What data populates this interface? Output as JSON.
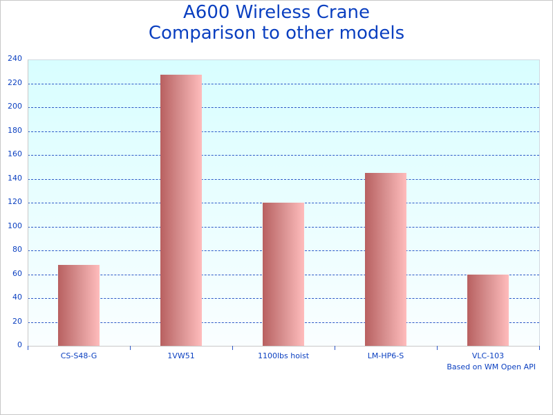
{
  "chart_data": {
    "type": "bar",
    "title": "A600 Wireless Crane\nComparison to other models",
    "title_lines": [
      "A600 Wireless Crane",
      "Comparison to other models"
    ],
    "categories": [
      "CS-S48-G",
      "1VW51",
      "1100lbs hoist",
      "LM-HP6-S",
      "VLC-103"
    ],
    "values": [
      68,
      227,
      120,
      145,
      60
    ],
    "xlabel": "",
    "ylabel": "",
    "ylim": [
      0,
      240
    ],
    "yticks": [
      0,
      20,
      40,
      60,
      80,
      100,
      120,
      140,
      160,
      180,
      200,
      220,
      240
    ],
    "grid": true,
    "legend": null,
    "annotation": "Based on WM Open API"
  },
  "colors": {
    "text": "#0a3fc0",
    "grid": "#2a56c6",
    "bar_dark": "#b86060",
    "bar_light": "#ffbcbc",
    "plot_bg_top": "#d8feff"
  }
}
